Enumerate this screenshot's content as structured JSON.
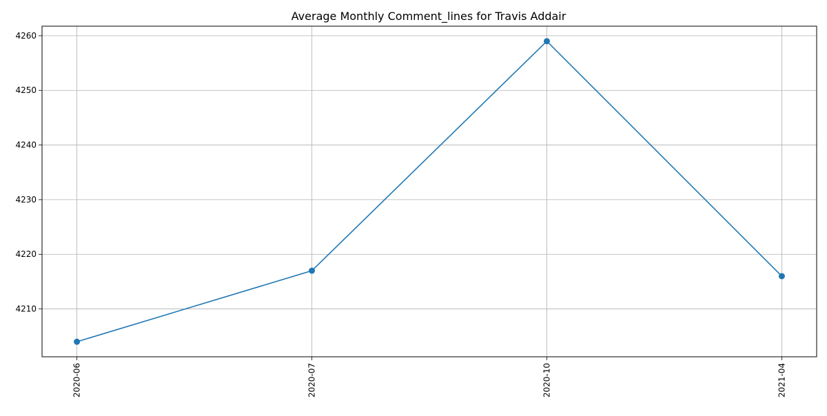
{
  "chart_data": {
    "type": "line",
    "title": "Average Monthly Comment_lines for Travis Addair",
    "xlabel": "",
    "ylabel": "",
    "categories": [
      "2020-06",
      "2020-07",
      "2020-10",
      "2021-04"
    ],
    "series": [
      {
        "values": [
          4204,
          4217,
          4259,
          4216
        ],
        "color": "#1f77b4",
        "marker": "circle"
      }
    ],
    "yticks": [
      4210,
      4220,
      4230,
      4240,
      4250,
      4260
    ],
    "ylim": [
      4201.25,
      4261.75
    ],
    "grid": true,
    "legend": "none"
  }
}
